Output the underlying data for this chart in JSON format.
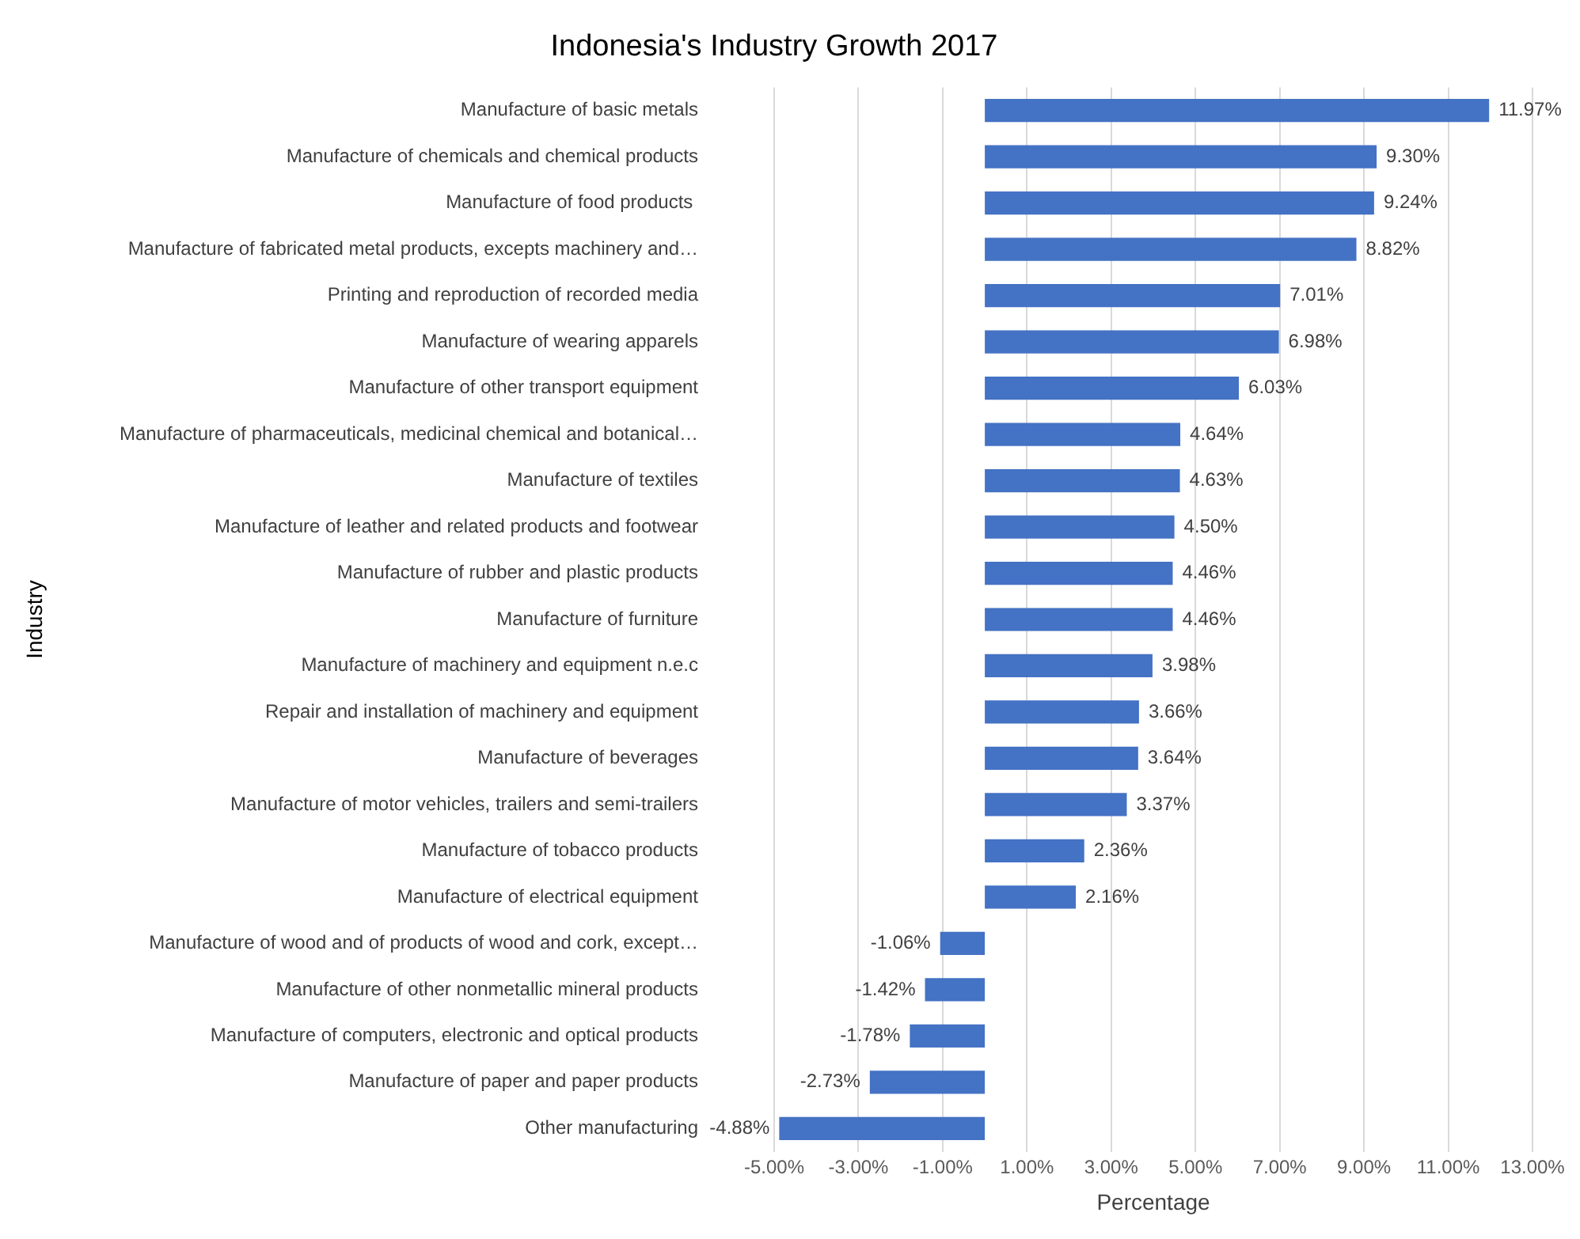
{
  "chart_data": {
    "type": "bar",
    "orientation": "horizontal",
    "title": "Indonesia's Industry Growth 2017",
    "xlabel": "Percentage",
    "ylabel": "Industry",
    "categories": [
      "Manufacture of basic metals",
      "Manufacture of chemicals and chemical products",
      "Manufacture of food products ",
      "Manufacture of fabricated metal products, excepts machinery and…",
      "Printing and reproduction of recorded media",
      "Manufacture of wearing apparels",
      "Manufacture of other transport equipment",
      "Manufacture of pharmaceuticals, medicinal chemical and botanical…",
      "Manufacture of textiles",
      "Manufacture of leather and related products and footwear",
      "Manufacture of rubber and plastic products",
      "Manufacture of furniture",
      "Manufacture of machinery and equipment n.e.c",
      "Repair and installation of machinery and equipment",
      "Manufacture of beverages",
      "Manufacture of motor vehicles, trailers and semi-trailers",
      "Manufacture of tobacco products",
      "Manufacture of electrical equipment",
      "Manufacture of wood and of products of wood and cork, except…",
      "Manufacture of other nonmetallic mineral products",
      "Manufacture of computers, electronic and optical products",
      "Manufacture of paper and paper products",
      "Other manufacturing"
    ],
    "values": [
      11.97,
      9.3,
      9.24,
      8.82,
      7.01,
      6.98,
      6.03,
      4.64,
      4.63,
      4.5,
      4.46,
      4.46,
      3.98,
      3.66,
      3.64,
      3.37,
      2.36,
      2.16,
      -1.06,
      -1.42,
      -1.78,
      -2.73,
      -4.88
    ],
    "value_labels": [
      "11.97%",
      "9.30%",
      "9.24%",
      "8.82%",
      "7.01%",
      "6.98%",
      "6.03%",
      "4.64%",
      "4.63%",
      "4.50%",
      "4.46%",
      "4.46%",
      "3.98%",
      "3.66%",
      "3.64%",
      "3.37%",
      "2.36%",
      "2.16%",
      "-1.06%",
      "-1.42%",
      "-1.78%",
      "-2.73%",
      "-4.88%"
    ],
    "color": "#4472c4",
    "xlim": [
      -5,
      13
    ],
    "xticks": [
      {
        "value": -5,
        "label": "-5.00%"
      },
      {
        "value": -3,
        "label": "-3.00%"
      },
      {
        "value": -1,
        "label": "-1.00%"
      },
      {
        "value": 1,
        "label": "1.00%"
      },
      {
        "value": 3,
        "label": "3.00%"
      },
      {
        "value": 5,
        "label": "5.00%"
      },
      {
        "value": 7,
        "label": "7.00%"
      },
      {
        "value": 9,
        "label": "9.00%"
      },
      {
        "value": 11,
        "label": "11.00%"
      },
      {
        "value": 13,
        "label": "13.00%"
      }
    ],
    "grid": "x",
    "legend": false
  }
}
